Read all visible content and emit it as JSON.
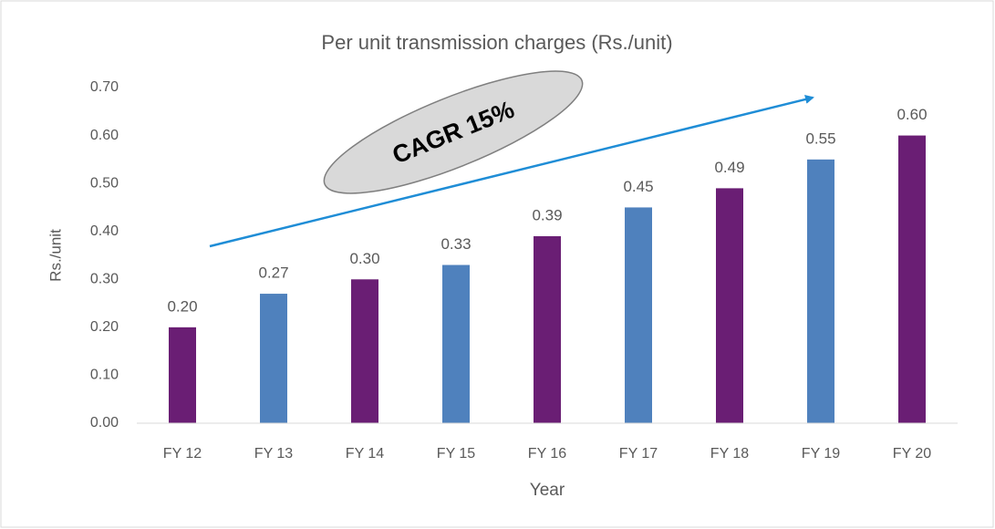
{
  "chart_data": {
    "type": "bar",
    "title": "Per unit transmission charges (Rs./unit)",
    "x_label": "Year",
    "y_label": "Rs./unit",
    "annotation": "CAGR 15%",
    "categories": [
      "FY 12",
      "FY 13",
      "FY 14",
      "FY 15",
      "FY 16",
      "FY 17",
      "FY 18",
      "FY 19",
      "FY 20"
    ],
    "values": [
      0.2,
      0.27,
      0.3,
      0.33,
      0.39,
      0.45,
      0.49,
      0.55,
      0.6
    ],
    "value_labels": [
      "0.20",
      "0.27",
      "0.30",
      "0.33",
      "0.39",
      "0.45",
      "0.49",
      "0.55",
      "0.60"
    ],
    "colors": [
      "#6a1e74",
      "#4f81bd",
      "#6a1e74",
      "#4f81bd",
      "#6a1e74",
      "#4f81bd",
      "#6a1e74",
      "#4f81bd",
      "#6a1e74"
    ],
    "ylim": [
      0,
      0.7
    ],
    "yticks": [
      {
        "value": 0,
        "label": "0.00"
      },
      {
        "value": 0.1,
        "label": "0.10"
      },
      {
        "value": 0.2,
        "label": "0.20"
      },
      {
        "value": 0.3,
        "label": "0.30"
      },
      {
        "value": 0.4,
        "label": "0.40"
      },
      {
        "value": 0.5,
        "label": "0.50"
      },
      {
        "value": 0.6,
        "label": "0.60"
      },
      {
        "value": 0.7,
        "label": "0.70"
      }
    ],
    "grid": false
  }
}
